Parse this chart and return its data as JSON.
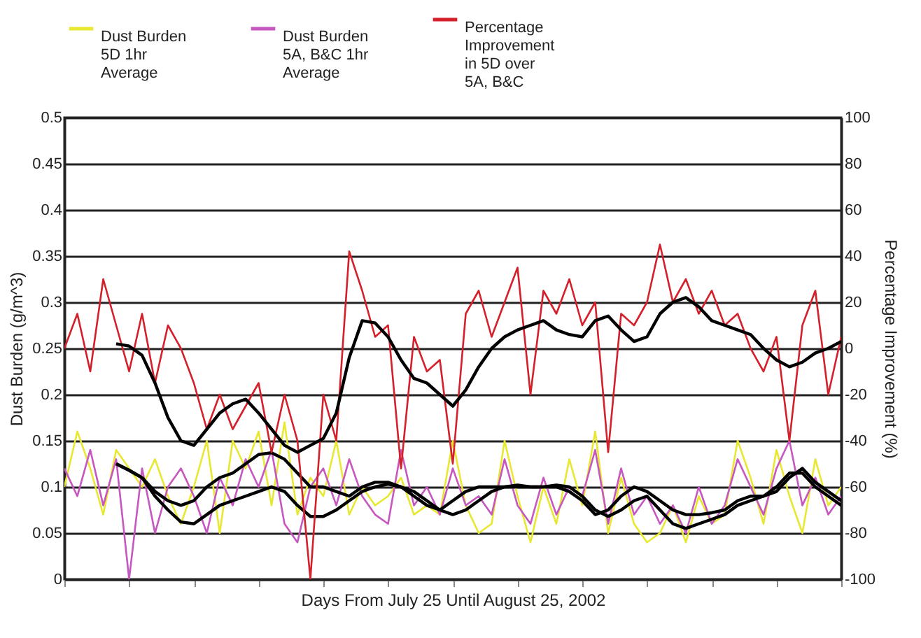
{
  "chart_data": {
    "type": "line",
    "xlabel": "Days From July 25 Until August 25, 2002",
    "ylabel": "Dust Burden (g/m^3)",
    "y2label": "Percentage Improvement (%)",
    "categories": [
      null,
      null,
      null,
      null,
      null,
      null,
      null,
      null,
      null,
      null,
      null,
      null,
      null,
      null,
      null,
      null,
      null,
      null,
      null,
      null,
      null,
      null,
      null,
      null,
      null,
      null,
      null,
      null,
      null,
      null,
      null,
      null,
      null,
      null,
      null,
      null,
      null,
      null,
      null,
      null,
      null,
      null,
      null,
      null,
      null,
      null,
      null,
      null,
      null,
      null,
      null,
      null,
      null,
      null,
      null,
      null,
      null,
      null,
      null,
      null,
      null
    ],
    "ylim": [
      0,
      0.5
    ],
    "yticks": [
      0,
      0.05,
      0.1,
      0.15,
      0.2,
      0.25,
      0.3,
      0.35,
      0.4,
      0.45,
      0.5
    ],
    "y2lim": [
      -100,
      100
    ],
    "y2ticks": [
      -100,
      -80,
      -60,
      -40,
      -20,
      0,
      20,
      40,
      60,
      80,
      100
    ],
    "grid": "y",
    "legend": "top",
    "series": [
      {
        "name": "Dust Burden 5D 1hr Average",
        "color": "#e8e832",
        "values": [
          0.1,
          0.16,
          0.12,
          0.07,
          0.14,
          0.12,
          0.1,
          0.13,
          0.09,
          0.06,
          0.1,
          0.15,
          0.05,
          0.15,
          0.12,
          0.16,
          0.08,
          0.17,
          0.07,
          0.11,
          0.09,
          0.15,
          0.07,
          0.1,
          0.08,
          0.09,
          0.11,
          0.07,
          0.08,
          0.07,
          0.15,
          0.08,
          0.05,
          0.06,
          0.15,
          0.09,
          0.04,
          0.1,
          0.06,
          0.13,
          0.08,
          0.16,
          0.05,
          0.11,
          0.06,
          0.04,
          0.05,
          0.08,
          0.04,
          0.09,
          0.06,
          0.07,
          0.15,
          0.11,
          0.06,
          0.14,
          0.09,
          0.05,
          0.13,
          0.08,
          0.1
        ]
      },
      {
        "name": "Dust Burden 5A, B&C 1hr Average",
        "color": "#c757c0",
        "values": [
          0.12,
          0.09,
          0.14,
          0.08,
          0.13,
          0,
          0.12,
          0.05,
          0.1,
          0.12,
          0.09,
          0.05,
          0.11,
          0.08,
          0.13,
          0.1,
          0.14,
          0.06,
          0.04,
          0.1,
          0.12,
          0.08,
          0.13,
          0.09,
          0.07,
          0.06,
          0.14,
          0.08,
          0.1,
          0.07,
          0.12,
          0.08,
          0.09,
          0.07,
          0.13,
          0.08,
          0.06,
          0.11,
          0.07,
          0.1,
          0.09,
          0.14,
          0.06,
          0.12,
          0.07,
          0.09,
          0.06,
          0.08,
          0.05,
          0.1,
          0.06,
          0.08,
          0.13,
          0.1,
          0.07,
          0.12,
          0.15,
          0.08,
          0.11,
          0.07,
          0.09
        ]
      },
      {
        "name": "Percentage Improvement in 5D over 5A, B&C",
        "color": "#d4202a",
        "axis": "y2",
        "values": [
          0,
          15,
          -10,
          30,
          10,
          -10,
          15,
          -15,
          10,
          0,
          -15,
          -35,
          -20,
          -35,
          -25,
          -15,
          -45,
          -20,
          -40,
          -100,
          -20,
          -40,
          42,
          25,
          5,
          10,
          -52,
          5,
          -10,
          -5,
          -50,
          15,
          25,
          5,
          20,
          35,
          -20,
          25,
          15,
          30,
          10,
          20,
          -45,
          15,
          10,
          20,
          45,
          20,
          30,
          15,
          25,
          10,
          15,
          0,
          -10,
          5,
          -40,
          10,
          25,
          -20,
          5
        ]
      },
      {
        "color": "#000000",
        "axis": "y2",
        "values": [
          null,
          null,
          null,
          null,
          2,
          1,
          -3,
          -15,
          -30,
          -40,
          -42,
          -35,
          -28,
          -24,
          -22,
          -28,
          -35,
          -42,
          -45,
          -42,
          -39,
          -28,
          -4,
          12,
          11,
          5,
          -5,
          -13,
          -15,
          -20,
          -25,
          -18,
          -8,
          0,
          5,
          8,
          10,
          12,
          8,
          6,
          5,
          12,
          14,
          8,
          3,
          5,
          15,
          20,
          22,
          18,
          12,
          10,
          8,
          6,
          0,
          -5,
          -8,
          -6,
          -2,
          0,
          3
        ]
      },
      {
        "color": "#000000",
        "values": [
          null,
          null,
          null,
          null,
          0.125,
          0.118,
          0.11,
          0.095,
          0.085,
          0.08,
          0.085,
          0.1,
          0.11,
          0.115,
          0.125,
          0.135,
          0.137,
          0.13,
          0.115,
          0.1,
          0.1,
          0.095,
          0.09,
          0.1,
          0.105,
          0.105,
          0.1,
          0.09,
          0.08,
          0.075,
          0.085,
          0.095,
          0.1,
          0.1,
          0.1,
          0.102,
          0.1,
          0.1,
          0.1,
          0.095,
          0.085,
          0.07,
          0.075,
          0.09,
          0.1,
          0.095,
          0.085,
          0.075,
          0.07,
          0.07,
          0.072,
          0.075,
          0.085,
          0.09,
          0.09,
          0.095,
          0.11,
          0.12,
          0.105,
          0.095,
          0.085
        ]
      },
      {
        "color": "#000000",
        "values": [
          null,
          null,
          null,
          null,
          0.125,
          0.118,
          0.11,
          0.09,
          0.075,
          0.062,
          0.06,
          0.07,
          0.08,
          0.085,
          0.09,
          0.095,
          0.1,
          0.095,
          0.08,
          0.068,
          0.068,
          0.075,
          0.085,
          0.095,
          0.1,
          0.103,
          0.1,
          0.095,
          0.085,
          0.075,
          0.07,
          0.075,
          0.085,
          0.095,
          0.1,
          0.1,
          0.1,
          0.1,
          0.102,
          0.1,
          0.09,
          0.075,
          0.068,
          0.075,
          0.085,
          0.09,
          0.075,
          0.06,
          0.055,
          0.06,
          0.065,
          0.07,
          0.08,
          0.085,
          0.09,
          0.1,
          0.115,
          0.115,
          0.1,
          0.09,
          0.08
        ]
      }
    ]
  }
}
